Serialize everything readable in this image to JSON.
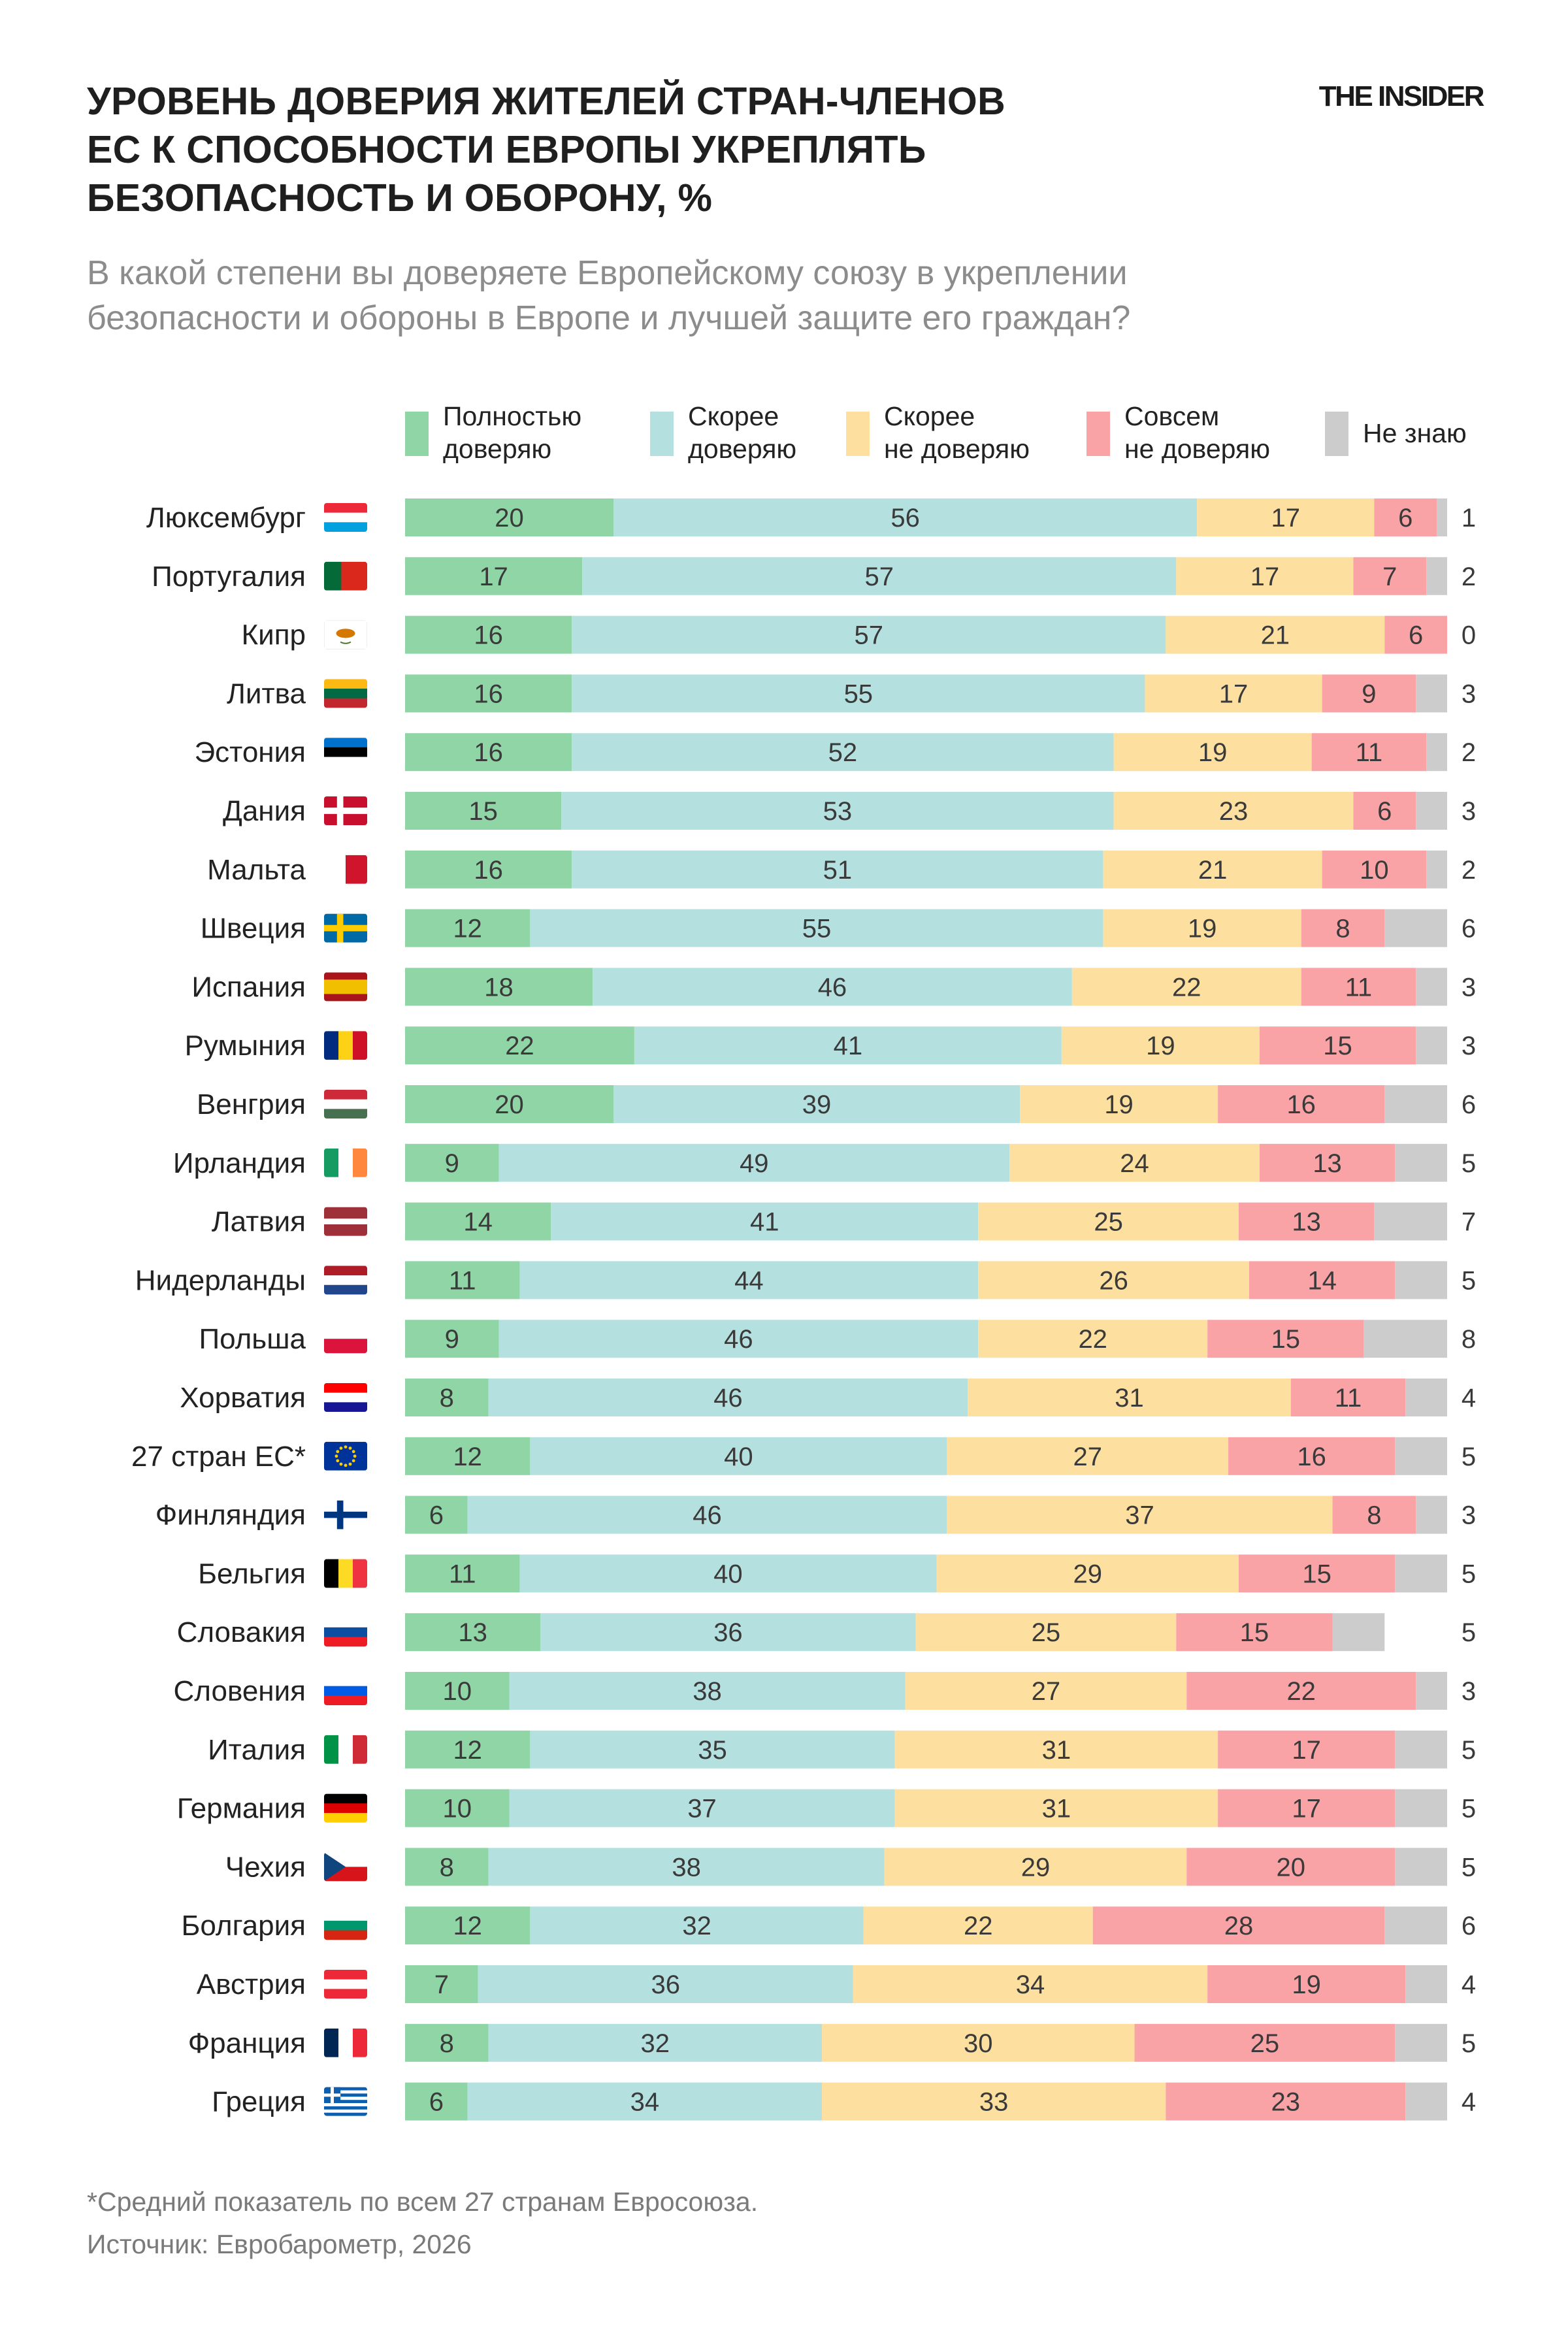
{
  "title": "УРОВЕНЬ ДОВЕРИЯ ЖИТЕЛЕЙ СТРАН-ЧЛЕНОВ\nЕС К СПОСОБНОСТИ ЕВРОПЫ УКРЕПЛЯТЬ\nБЕЗОПАСНОСТЬ И ОБОРОНУ, %",
  "brand": "THE INSIDER",
  "subtitle": "В какой степени вы доверяете Европейскому союзу в укреплении\nбезопасности и обороны в Европе и лучшей защите его граждан?",
  "footnote": "*Средний показатель по всем 27 странам Евросоюза.",
  "source": "Источник: Евробарометр, 2026",
  "colors": {
    "full_trust": "#8fd5a6",
    "rather_trust": "#b4e1e0",
    "rather_distrust": "#fde0a0",
    "full_distrust": "#f9a3a6",
    "dont_know": "#cccccc",
    "label_text": "#3a3a3a"
  },
  "chart_data": {
    "type": "bar",
    "orientation": "horizontal",
    "stacked": true,
    "unit": "%",
    "title": "УРОВЕНЬ ДОВЕРИЯ ЖИТЕЛЕЙ СТРАН-ЧЛЕНОВ ЕС К СПОСОБНОСТИ ЕВРОПЫ УКРЕПЛЯТЬ БЕЗОПАСНОСТЬ И ОБОРОНУ, %",
    "categories": [
      "Люксембург",
      "Португалия",
      "Кипр",
      "Литва",
      "Эстония",
      "Дания",
      "Мальта",
      "Швеция",
      "Испания",
      "Румыния",
      "Венгрия",
      "Ирландия",
      "Латвия",
      "Нидерланды",
      "Польша",
      "Хорватия",
      "27 стран ЕС*",
      "Финляндия",
      "Бельгия",
      "Словакия",
      "Словения",
      "Италия",
      "Германия",
      "Чехия",
      "Болгария",
      "Австрия",
      "Франция",
      "Греция"
    ],
    "flags": [
      {
        "type": "h",
        "colors": [
          "#ed2939",
          "#ffffff",
          "#00a1de"
        ]
      },
      {
        "type": "v",
        "colors": [
          "#046a38",
          "#da291c"
        ],
        "weights": [
          2,
          3
        ]
      },
      {
        "type": "cy",
        "colors": [
          "#ffffff",
          "#d57800"
        ]
      },
      {
        "type": "h",
        "colors": [
          "#fdb913",
          "#006a44",
          "#c1272d"
        ]
      },
      {
        "type": "h",
        "colors": [
          "#0072ce",
          "#000000",
          "#ffffff"
        ]
      },
      {
        "type": "nordic",
        "colors": [
          "#c8102e",
          "#ffffff"
        ]
      },
      {
        "type": "v",
        "colors": [
          "#ffffff",
          "#cf142b"
        ]
      },
      {
        "type": "nordic",
        "colors": [
          "#006aa7",
          "#fecc00"
        ]
      },
      {
        "type": "h",
        "colors": [
          "#aa151b",
          "#f1bf00",
          "#aa151b"
        ],
        "weights": [
          1,
          2,
          1
        ]
      },
      {
        "type": "v",
        "colors": [
          "#002b7f",
          "#fcd116",
          "#ce1126"
        ]
      },
      {
        "type": "h",
        "colors": [
          "#ce2939",
          "#ffffff",
          "#477050"
        ]
      },
      {
        "type": "v",
        "colors": [
          "#169b62",
          "#ffffff",
          "#ff883e"
        ]
      },
      {
        "type": "h",
        "colors": [
          "#9e3039",
          "#ffffff",
          "#9e3039"
        ],
        "weights": [
          2,
          1,
          2
        ]
      },
      {
        "type": "h",
        "colors": [
          "#ae1c28",
          "#ffffff",
          "#21468b"
        ]
      },
      {
        "type": "h",
        "colors": [
          "#ffffff",
          "#dc143c"
        ]
      },
      {
        "type": "h",
        "colors": [
          "#ff0000",
          "#ffffff",
          "#171796"
        ]
      },
      {
        "type": "eu",
        "colors": [
          "#003399",
          "#ffcc00"
        ]
      },
      {
        "type": "nordic",
        "colors": [
          "#ffffff",
          "#003580"
        ]
      },
      {
        "type": "v",
        "colors": [
          "#000000",
          "#fdda24",
          "#ef3340"
        ]
      },
      {
        "type": "h",
        "colors": [
          "#ffffff",
          "#0b4ea2",
          "#ee1c25"
        ]
      },
      {
        "type": "h",
        "colors": [
          "#ffffff",
          "#005ce5",
          "#ed1c24"
        ]
      },
      {
        "type": "v",
        "colors": [
          "#009246",
          "#ffffff",
          "#ce2b37"
        ]
      },
      {
        "type": "h",
        "colors": [
          "#000000",
          "#dd0000",
          "#ffce00"
        ]
      },
      {
        "type": "cz",
        "colors": [
          "#ffffff",
          "#d7141a",
          "#11457e"
        ]
      },
      {
        "type": "h",
        "colors": [
          "#ffffff",
          "#00966e",
          "#d62612"
        ]
      },
      {
        "type": "h",
        "colors": [
          "#ed2939",
          "#ffffff",
          "#ed2939"
        ]
      },
      {
        "type": "v",
        "colors": [
          "#002654",
          "#ffffff",
          "#ed2939"
        ]
      },
      {
        "type": "gr",
        "colors": [
          "#0d5eaf",
          "#ffffff"
        ]
      }
    ],
    "series": [
      {
        "name": "Полностью\nдоверяю",
        "color": "#8fd5a6",
        "values": [
          20,
          17,
          16,
          16,
          16,
          15,
          16,
          12,
          18,
          22,
          20,
          9,
          14,
          11,
          9,
          8,
          12,
          6,
          11,
          13,
          10,
          12,
          10,
          8,
          12,
          7,
          8,
          6
        ]
      },
      {
        "name": "Скорее\nдоверяю",
        "color": "#b4e1e0",
        "values": [
          56,
          57,
          57,
          55,
          52,
          53,
          51,
          55,
          46,
          41,
          39,
          49,
          41,
          44,
          46,
          46,
          40,
          46,
          40,
          36,
          38,
          35,
          37,
          38,
          32,
          36,
          32,
          34
        ]
      },
      {
        "name": "Скорее\nне доверяю",
        "color": "#fde0a0",
        "values": [
          17,
          17,
          21,
          17,
          19,
          23,
          21,
          19,
          22,
          19,
          19,
          24,
          25,
          26,
          22,
          31,
          27,
          37,
          29,
          25,
          27,
          31,
          31,
          29,
          22,
          34,
          30,
          33
        ]
      },
      {
        "name": "Совсем\nне доверяю",
        "color": "#f9a3a6",
        "values": [
          6,
          7,
          6,
          9,
          11,
          6,
          10,
          8,
          11,
          15,
          16,
          13,
          13,
          14,
          15,
          11,
          16,
          8,
          15,
          15,
          22,
          17,
          17,
          20,
          28,
          19,
          25,
          23
        ]
      },
      {
        "name": "Не знаю",
        "color": "#cccccc",
        "values": [
          1,
          2,
          0,
          3,
          2,
          3,
          2,
          6,
          3,
          3,
          6,
          5,
          7,
          5,
          8,
          4,
          5,
          3,
          5,
          5,
          3,
          5,
          5,
          5,
          6,
          4,
          5,
          4
        ]
      }
    ],
    "xlim": [
      0,
      100
    ],
    "legend": "top",
    "grid": false
  }
}
